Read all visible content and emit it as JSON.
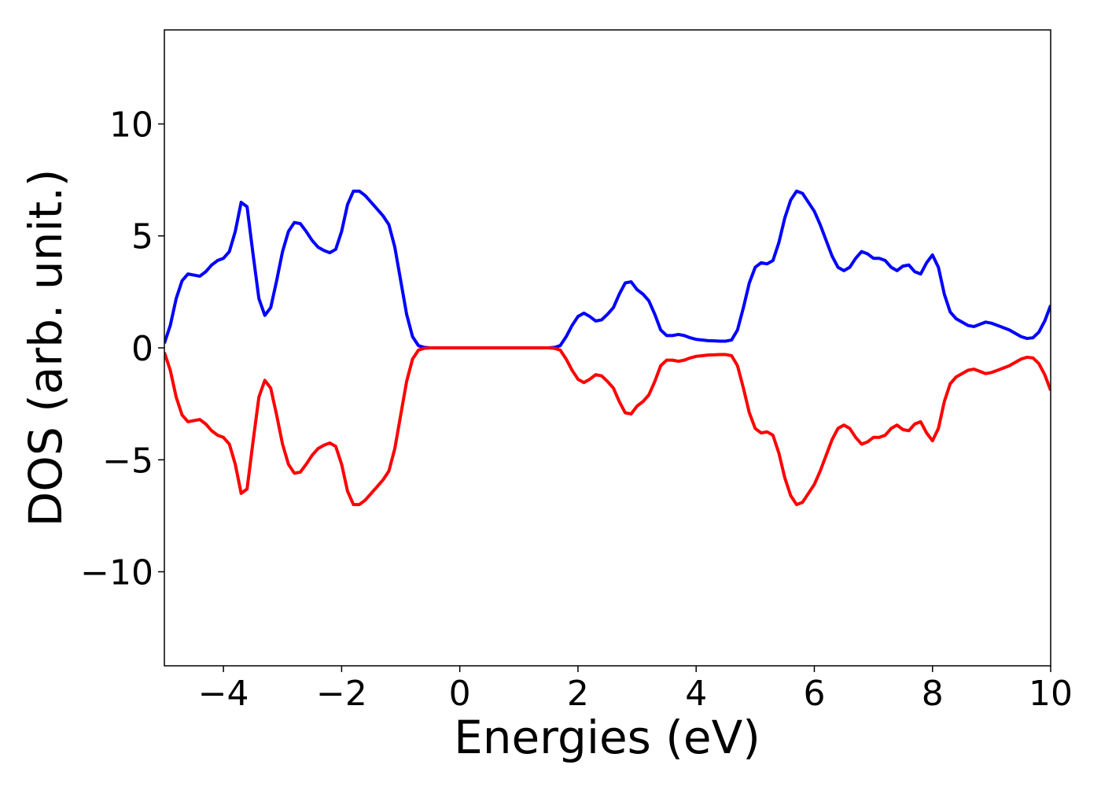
{
  "chart_data": {
    "type": "line",
    "x_label": "Energies (eV)",
    "y_label": "DOS (arb. unit.)",
    "x": [
      -5.0,
      -4.9,
      -4.8,
      -4.7,
      -4.6,
      -4.5,
      -4.4,
      -4.3,
      -4.2,
      -4.1,
      -4.0,
      -3.9,
      -3.8,
      -3.7,
      -3.6,
      -3.5,
      -3.4,
      -3.3,
      -3.2,
      -3.1,
      -3.0,
      -2.9,
      -2.8,
      -2.7,
      -2.6,
      -2.5,
      -2.4,
      -2.3,
      -2.2,
      -2.1,
      -2.0,
      -1.9,
      -1.8,
      -1.7,
      -1.6,
      -1.5,
      -1.4,
      -1.3,
      -1.2,
      -1.1,
      -1.0,
      -0.9,
      -0.8,
      -0.7,
      -0.6,
      -0.5,
      -0.4,
      -0.3,
      -0.2,
      -0.1,
      0.0,
      0.1,
      0.2,
      0.3,
      0.4,
      0.5,
      0.6,
      0.7,
      0.8,
      0.9,
      1.0,
      1.1,
      1.2,
      1.3,
      1.4,
      1.5,
      1.6,
      1.7,
      1.8,
      1.9,
      2.0,
      2.1,
      2.2,
      2.3,
      2.4,
      2.5,
      2.6,
      2.7,
      2.8,
      2.9,
      3.0,
      3.1,
      3.2,
      3.3,
      3.4,
      3.5,
      3.6,
      3.7,
      3.8,
      3.9,
      4.0,
      4.1,
      4.2,
      4.3,
      4.4,
      4.5,
      4.6,
      4.7,
      4.8,
      4.9,
      5.0,
      5.1,
      5.2,
      5.3,
      5.4,
      5.5,
      5.6,
      5.7,
      5.8,
      5.9,
      6.0,
      6.1,
      6.2,
      6.3,
      6.4,
      6.5,
      6.6,
      6.7,
      6.8,
      6.9,
      7.0,
      7.1,
      7.2,
      7.3,
      7.4,
      7.5,
      7.6,
      7.7,
      7.8,
      7.9,
      8.0,
      8.1,
      8.2,
      8.3,
      8.4,
      8.5,
      8.6,
      8.7,
      8.8,
      8.9,
      9.0,
      9.1,
      9.2,
      9.3,
      9.4,
      9.5,
      9.6,
      9.7,
      9.8,
      9.9,
      10.0
    ],
    "series": [
      {
        "color": "#0000ff",
        "values": [
          0.2,
          1.0,
          2.2,
          3.0,
          3.3,
          3.25,
          3.2,
          3.4,
          3.7,
          3.9,
          4.0,
          4.3,
          5.2,
          6.5,
          6.3,
          4.2,
          2.2,
          1.45,
          1.8,
          3.0,
          4.3,
          5.2,
          5.6,
          5.55,
          5.2,
          4.8,
          4.5,
          4.35,
          4.25,
          4.4,
          5.2,
          6.4,
          7.0,
          7.0,
          6.8,
          6.5,
          6.2,
          5.9,
          5.5,
          4.5,
          3.0,
          1.5,
          0.5,
          0.1,
          0.02,
          0,
          0,
          0,
          0,
          0,
          0,
          0,
          0,
          0,
          0,
          0,
          0,
          0,
          0,
          0,
          0,
          0,
          0,
          0,
          0,
          0,
          0.02,
          0.1,
          0.5,
          1.0,
          1.4,
          1.55,
          1.4,
          1.2,
          1.25,
          1.5,
          1.8,
          2.4,
          2.9,
          2.95,
          2.6,
          2.4,
          2.1,
          1.5,
          0.8,
          0.55,
          0.55,
          0.6,
          0.55,
          0.45,
          0.38,
          0.35,
          0.32,
          0.31,
          0.3,
          0.3,
          0.35,
          0.8,
          1.8,
          2.9,
          3.6,
          3.8,
          3.75,
          3.9,
          4.7,
          5.8,
          6.6,
          7.0,
          6.9,
          6.5,
          6.1,
          5.5,
          4.8,
          4.1,
          3.6,
          3.45,
          3.6,
          4.0,
          4.3,
          4.2,
          4.0,
          4.0,
          3.9,
          3.6,
          3.45,
          3.65,
          3.7,
          3.4,
          3.3,
          3.8,
          4.15,
          3.6,
          2.4,
          1.6,
          1.3,
          1.15,
          1.0,
          0.95,
          1.05,
          1.15,
          1.1,
          1.0,
          0.9,
          0.8,
          0.65,
          0.5,
          0.42,
          0.45,
          0.7,
          1.2,
          1.9
        ]
      },
      {
        "color": "#ff0000",
        "values": [
          -0.2,
          -1.0,
          -2.2,
          -3.0,
          -3.3,
          -3.25,
          -3.2,
          -3.4,
          -3.7,
          -3.9,
          -4.0,
          -4.3,
          -5.2,
          -6.5,
          -6.3,
          -4.2,
          -2.2,
          -1.45,
          -1.8,
          -3.0,
          -4.3,
          -5.2,
          -5.6,
          -5.55,
          -5.2,
          -4.8,
          -4.5,
          -4.35,
          -4.25,
          -4.4,
          -5.2,
          -6.4,
          -7.0,
          -7.0,
          -6.8,
          -6.5,
          -6.2,
          -5.9,
          -5.5,
          -4.5,
          -3.0,
          -1.5,
          -0.5,
          -0.1,
          -0.02,
          0,
          0,
          0,
          0,
          0,
          0,
          0,
          0,
          0,
          0,
          0,
          0,
          0,
          0,
          0,
          0,
          0,
          0,
          0,
          0,
          0,
          -0.02,
          -0.1,
          -0.5,
          -1.0,
          -1.4,
          -1.55,
          -1.4,
          -1.2,
          -1.25,
          -1.5,
          -1.8,
          -2.4,
          -2.9,
          -2.95,
          -2.6,
          -2.4,
          -2.1,
          -1.5,
          -0.8,
          -0.55,
          -0.55,
          -0.6,
          -0.55,
          -0.45,
          -0.38,
          -0.35,
          -0.32,
          -0.31,
          -0.3,
          -0.3,
          -0.35,
          -0.8,
          -1.8,
          -2.9,
          -3.6,
          -3.8,
          -3.75,
          -3.9,
          -4.7,
          -5.8,
          -6.6,
          -7.0,
          -6.9,
          -6.5,
          -6.1,
          -5.5,
          -4.8,
          -4.1,
          -3.6,
          -3.45,
          -3.6,
          -4.0,
          -4.3,
          -4.2,
          -4.0,
          -4.0,
          -3.9,
          -3.6,
          -3.45,
          -3.65,
          -3.7,
          -3.4,
          -3.3,
          -3.8,
          -4.15,
          -3.6,
          -2.4,
          -1.6,
          -1.3,
          -1.15,
          -1.0,
          -0.95,
          -1.05,
          -1.15,
          -1.1,
          -1.0,
          -0.9,
          -0.8,
          -0.65,
          -0.5,
          -0.42,
          -0.45,
          -0.7,
          -1.2,
          -1.9
        ]
      }
    ],
    "xlim": [
      -5,
      10
    ],
    "ylim": [
      -14.2,
      14.2
    ],
    "xticks": [
      {
        "value": -4,
        "label": "−4"
      },
      {
        "value": -2,
        "label": "−2"
      },
      0,
      2,
      4,
      6,
      8,
      10
    ],
    "yticks": [
      {
        "value": -10,
        "label": "−10"
      },
      {
        "value": -5,
        "label": "−5"
      },
      0,
      5,
      10
    ],
    "grid": false
  }
}
